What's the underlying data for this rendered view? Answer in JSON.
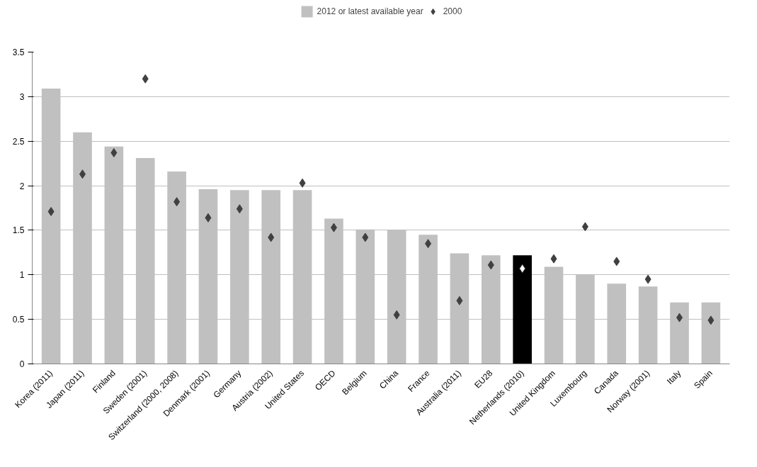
{
  "chart_data": {
    "type": "bar",
    "categories": [
      "Korea (2011)",
      "Japan (2011)",
      "Finland",
      "Sweden (2001)",
      "Switzerland (2000, 2008)",
      "Denmark (2001)",
      "Germany",
      "Austria (2002)",
      "United States",
      "OECD",
      "Belgium",
      "China",
      "France",
      "Australia (2011)",
      "EU28",
      "Netherlands (2010)",
      "United Kingdom",
      "Luxembourg",
      "Canada",
      "Norway (2001)",
      "Italy",
      "Spain"
    ],
    "series": [
      {
        "name": "2012 or latest available year",
        "type": "bar",
        "colors": [
          "#c0c0c0",
          "#c0c0c0",
          "#c0c0c0",
          "#c0c0c0",
          "#c0c0c0",
          "#c0c0c0",
          "#c0c0c0",
          "#c0c0c0",
          "#c0c0c0",
          "#c0c0c0",
          "#c0c0c0",
          "#c0c0c0",
          "#c0c0c0",
          "#c0c0c0",
          "#c0c0c0",
          "#000000",
          "#c0c0c0",
          "#c0c0c0",
          "#c0c0c0",
          "#c0c0c0",
          "#c0c0c0",
          "#c0c0c0"
        ],
        "values": [
          3.09,
          2.6,
          2.44,
          2.31,
          2.16,
          1.96,
          1.95,
          1.95,
          1.95,
          1.63,
          1.51,
          1.5,
          1.45,
          1.24,
          1.22,
          1.22,
          1.09,
          1.0,
          0.9,
          0.87,
          0.69,
          0.69
        ]
      },
      {
        "name": "2000",
        "type": "scatter",
        "marker": "diamond",
        "colors": [
          "#404040",
          "#404040",
          "#404040",
          "#404040",
          "#404040",
          "#404040",
          "#404040",
          "#404040",
          "#404040",
          "#404040",
          "#404040",
          "#404040",
          "#404040",
          "#404040",
          "#404040",
          "#ffffff",
          "#404040",
          "#404040",
          "#404040",
          "#404040",
          "#404040",
          "#404040"
        ],
        "values": [
          1.71,
          2.13,
          2.37,
          3.2,
          1.82,
          1.64,
          1.74,
          1.42,
          2.03,
          1.53,
          1.42,
          0.55,
          1.35,
          0.71,
          1.11,
          1.07,
          1.18,
          1.54,
          1.15,
          0.95,
          0.52,
          0.49
        ]
      }
    ],
    "ylim": [
      0,
      3.5
    ],
    "yticks": [
      0,
      0.5,
      1,
      1.5,
      2,
      2.5,
      3,
      3.5
    ],
    "grid": "y",
    "legend": "top"
  }
}
